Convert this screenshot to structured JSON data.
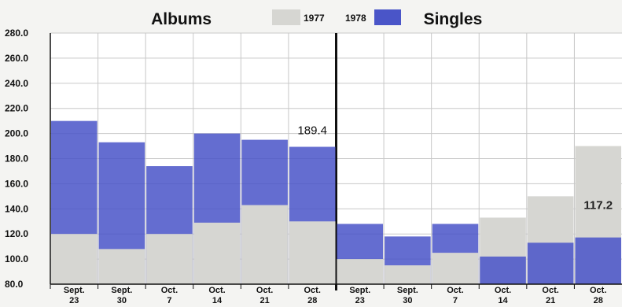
{
  "chart_data": {
    "type": "bar",
    "yticks": [
      "280.0",
      "260.0",
      "240.0",
      "220.0",
      "200.0",
      "180.0",
      "160.0",
      "140.0",
      "120.0",
      "100.0",
      "80.0"
    ],
    "ylim": [
      80,
      280
    ],
    "categories": [
      {
        "top": "Sept.",
        "bottom": "23"
      },
      {
        "top": "Sept.",
        "bottom": "30"
      },
      {
        "top": "Oct.",
        "bottom": "7"
      },
      {
        "top": "Oct.",
        "bottom": "14"
      },
      {
        "top": "Oct.",
        "bottom": "21"
      },
      {
        "top": "Oct.",
        "bottom": "28"
      }
    ],
    "legend": [
      {
        "name": "1977",
        "color": "#d6d6d2"
      },
      {
        "name": "1978",
        "color": "#4a55c8"
      }
    ],
    "panels": [
      {
        "title": "Albums",
        "series": [
          {
            "name": "1977",
            "values": [
              120,
              108,
              120,
              129,
              143,
              130
            ]
          },
          {
            "name": "1978",
            "values": [
              210,
              193,
              174,
              200,
              195,
              189.4
            ]
          }
        ],
        "annotation": {
          "text": "189.4",
          "index": 5
        }
      },
      {
        "title": "Singles",
        "series": [
          {
            "name": "1977",
            "values": [
              100,
              95,
              105,
              133,
              150,
              190
            ]
          },
          {
            "name": "1978",
            "values": [
              128,
              118,
              128,
              102,
              113,
              117.2
            ]
          }
        ],
        "annotation": {
          "text": "117.2",
          "index": 5
        }
      }
    ],
    "grid": true
  }
}
